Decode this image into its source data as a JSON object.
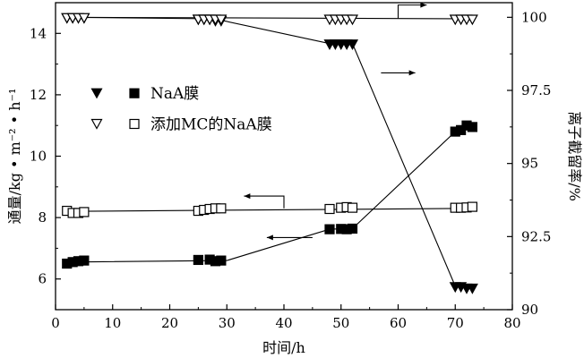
{
  "chart_data": {
    "type": "line",
    "x_axis": {
      "label": "时间/h",
      "min": 0,
      "max": 80,
      "ticks": [
        0,
        10,
        20,
        30,
        40,
        50,
        60,
        70,
        80
      ]
    },
    "y_axis_left": {
      "label": "通量/kg • m⁻² • h⁻¹",
      "min": 5,
      "max": 15,
      "ticks": [
        6,
        8,
        10,
        12,
        14
      ]
    },
    "y_axis_right": {
      "label": "离子截留率/%",
      "min": 90,
      "max": 100.5,
      "ticks": [
        "90",
        "92.5",
        "95",
        "97.5",
        "100"
      ]
    },
    "legend": {
      "placement": "upper-left-inside"
    },
    "series": [
      {
        "name": "NaA膜",
        "metric": "flux",
        "axis": "left",
        "marker": "filled-square",
        "points": [
          [
            2,
            6.5
          ],
          [
            3,
            6.55
          ],
          [
            4,
            6.58
          ],
          [
            5,
            6.6
          ],
          [
            25,
            6.62
          ],
          [
            27,
            6.63
          ],
          [
            28,
            6.58
          ],
          [
            29,
            6.6
          ],
          [
            48,
            7.62
          ],
          [
            50,
            7.63
          ],
          [
            51,
            7.62
          ],
          [
            52,
            7.64
          ],
          [
            70,
            10.8
          ],
          [
            71,
            10.85
          ],
          [
            72,
            11.0
          ],
          [
            73,
            10.95
          ]
        ],
        "line": [
          [
            2,
            6.55
          ],
          [
            30,
            6.6
          ],
          [
            48,
            7.62
          ],
          [
            52,
            7.64
          ],
          [
            70,
            10.8
          ],
          [
            72,
            11.0
          ]
        ]
      },
      {
        "name": "NaA膜",
        "metric": "rejection",
        "axis": "right",
        "marker": "filled-triangle-down",
        "points": [
          [
            2,
            100
          ],
          [
            3,
            100
          ],
          [
            4,
            100
          ],
          [
            5,
            100
          ],
          [
            25,
            99.95
          ],
          [
            26,
            99.95
          ],
          [
            27,
            99.95
          ],
          [
            28,
            99.9
          ],
          [
            29,
            99.9
          ],
          [
            48,
            99.1
          ],
          [
            49,
            99.1
          ],
          [
            50,
            99.1
          ],
          [
            51,
            99.1
          ],
          [
            52,
            99.1
          ],
          [
            70,
            90.8
          ],
          [
            71,
            90.8
          ],
          [
            72,
            90.75
          ],
          [
            73,
            90.75
          ]
        ],
        "line": [
          [
            2,
            100
          ],
          [
            27,
            99.95
          ],
          [
            29,
            99.9
          ],
          [
            48,
            99.1
          ],
          [
            52,
            99.1
          ],
          [
            70,
            90.8
          ],
          [
            73,
            90.75
          ]
        ]
      },
      {
        "name": "添加MC的NaA膜",
        "metric": "flux",
        "axis": "left",
        "marker": "open-square",
        "points": [
          [
            2,
            8.22
          ],
          [
            3,
            8.15
          ],
          [
            4,
            8.15
          ],
          [
            5,
            8.18
          ],
          [
            25,
            8.22
          ],
          [
            26,
            8.25
          ],
          [
            27,
            8.28
          ],
          [
            28,
            8.3
          ],
          [
            29,
            8.3
          ],
          [
            48,
            8.28
          ],
          [
            50,
            8.32
          ],
          [
            51,
            8.34
          ],
          [
            52,
            8.32
          ],
          [
            70,
            8.32
          ],
          [
            71,
            8.32
          ],
          [
            72,
            8.33
          ],
          [
            73,
            8.35
          ]
        ],
        "line": [
          [
            2,
            8.2
          ],
          [
            73,
            8.3
          ]
        ]
      },
      {
        "name": "添加MC的NaA膜",
        "metric": "rejection",
        "axis": "right",
        "marker": "open-triangle-down",
        "points": [
          [
            2,
            100
          ],
          [
            3,
            100
          ],
          [
            4,
            100
          ],
          [
            5,
            100
          ],
          [
            25,
            99.95
          ],
          [
            26,
            99.95
          ],
          [
            27,
            99.95
          ],
          [
            28,
            99.95
          ],
          [
            29,
            99.95
          ],
          [
            48,
            99.95
          ],
          [
            49,
            99.95
          ],
          [
            50,
            99.95
          ],
          [
            51,
            99.95
          ],
          [
            52,
            99.95
          ],
          [
            70,
            99.95
          ],
          [
            71,
            99.95
          ],
          [
            72,
            99.95
          ],
          [
            73,
            99.95
          ]
        ],
        "line": [
          [
            2,
            100
          ],
          [
            73,
            99.95
          ]
        ]
      }
    ],
    "annotations": [
      {
        "kind": "axis-pointer",
        "points_to": "right",
        "series": "添加MC的NaA膜 rejection"
      },
      {
        "kind": "axis-pointer",
        "points_to": "right",
        "series": "NaA膜 rejection"
      },
      {
        "kind": "axis-pointer",
        "points_to": "left",
        "series": "添加MC的NaA膜 flux"
      },
      {
        "kind": "axis-pointer",
        "points_to": "left",
        "series": "NaA膜 flux"
      }
    ]
  }
}
